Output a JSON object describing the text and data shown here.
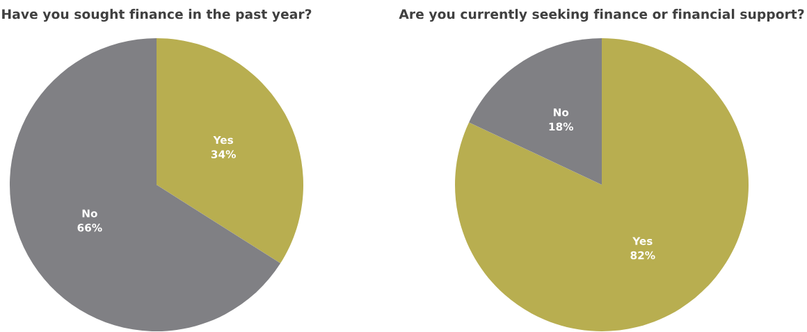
{
  "chart_data": [
    {
      "type": "pie",
      "title": "Have you sought finance in the past year?",
      "categories": [
        "Yes",
        "No"
      ],
      "values": [
        34,
        66
      ],
      "colors": [
        "#b8ae50",
        "#808084"
      ],
      "value_labels": [
        "34%",
        "66%"
      ]
    },
    {
      "type": "pie",
      "title": "Are you currently seeking finance or financial support?",
      "categories": [
        "Yes",
        "No"
      ],
      "values": [
        82,
        18
      ],
      "colors": [
        "#b8ae50",
        "#808084"
      ],
      "value_labels": [
        "82%",
        "18%"
      ]
    }
  ]
}
